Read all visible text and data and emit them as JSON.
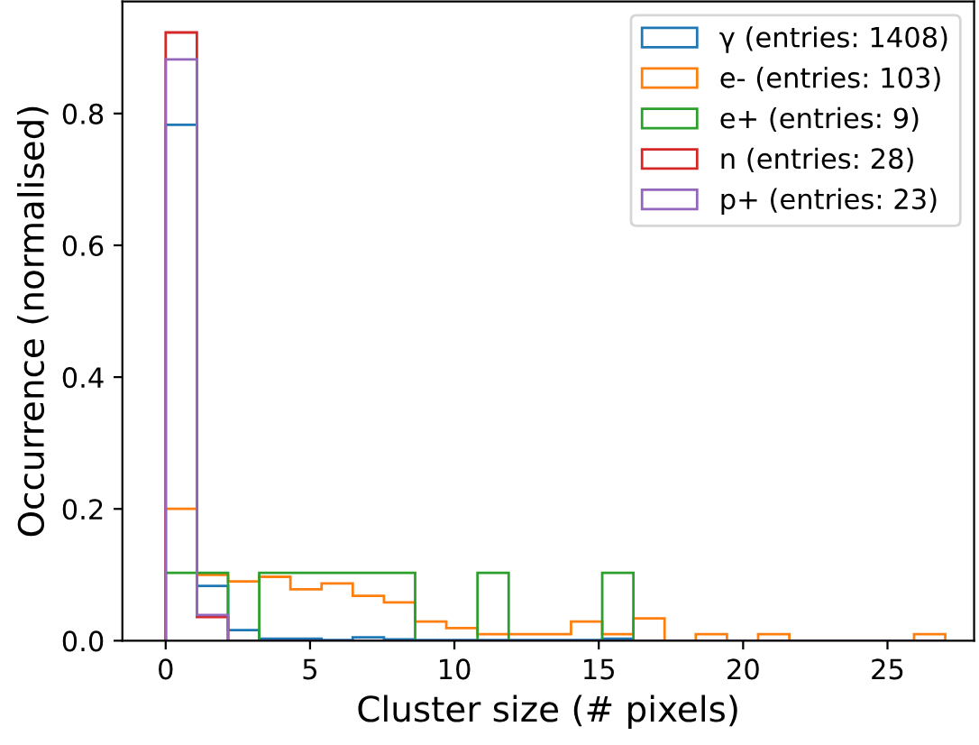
{
  "chart_data": {
    "type": "histogram",
    "xlabel": "Cluster size (# pixels)",
    "ylabel": "Occurrence (normalised)",
    "bins": [
      0,
      1.08,
      2.16,
      3.24,
      4.32,
      5.4,
      6.48,
      7.56,
      8.64,
      9.72,
      10.8,
      11.88,
      12.96,
      14.04,
      15.12,
      16.2,
      17.28,
      18.36,
      19.44,
      20.52,
      21.6,
      22.68,
      23.76,
      24.84,
      25.92,
      27.0
    ],
    "series": [
      {
        "name": "γ (entries: 1408)",
        "color": "#1f77b4",
        "values": [
          0.783,
          0.083,
          0.016,
          0.003,
          0.003,
          0.001,
          0.005,
          0.002,
          0.001,
          0.001,
          0.001,
          0.001,
          0.001,
          0.001,
          0.003,
          0,
          0,
          0,
          0,
          0,
          0,
          0,
          0,
          0,
          0
        ]
      },
      {
        "name": "e- (entries: 103)",
        "color": "#ff7f0e",
        "values": [
          0.2,
          0.1,
          0.09,
          0.097,
          0.078,
          0.087,
          0.068,
          0.058,
          0.029,
          0.019,
          0.01,
          0.01,
          0.01,
          0.029,
          0.01,
          0.034,
          0,
          0.01,
          0,
          0.01,
          0,
          0,
          0,
          0,
          0.01
        ]
      },
      {
        "name": "e+ (entries: 9)",
        "color": "#2ca02c",
        "values": [
          0.103,
          0.103,
          0,
          0.103,
          0.103,
          0.103,
          0.103,
          0.103,
          0,
          0,
          0.103,
          0,
          0,
          0,
          0.103,
          0,
          0,
          0,
          0,
          0,
          0,
          0,
          0,
          0,
          0
        ]
      },
      {
        "name": "n (entries: 28)",
        "color": "#d62728",
        "values": [
          0.923,
          0.036,
          0,
          0,
          0,
          0,
          0,
          0,
          0,
          0,
          0,
          0,
          0,
          0,
          0,
          0,
          0,
          0,
          0,
          0,
          0,
          0,
          0,
          0,
          0
        ]
      },
      {
        "name": "p+ (entries: 23)",
        "color": "#9467bd",
        "values": [
          0.882,
          0.039,
          0,
          0,
          0,
          0,
          0,
          0,
          0,
          0,
          0,
          0,
          0,
          0,
          0,
          0,
          0,
          0,
          0,
          0,
          0,
          0,
          0,
          0,
          0
        ]
      }
    ],
    "xlim": [
      -1.5,
      28
    ],
    "ylim": [
      0,
      0.97
    ],
    "xticks": [
      0,
      5,
      10,
      15,
      20,
      25
    ],
    "yticks": [
      {
        "value": 0,
        "label": "0.0"
      },
      0.2,
      0.4,
      0.6,
      0.8
    ],
    "grid": false,
    "legend": "top right"
  }
}
